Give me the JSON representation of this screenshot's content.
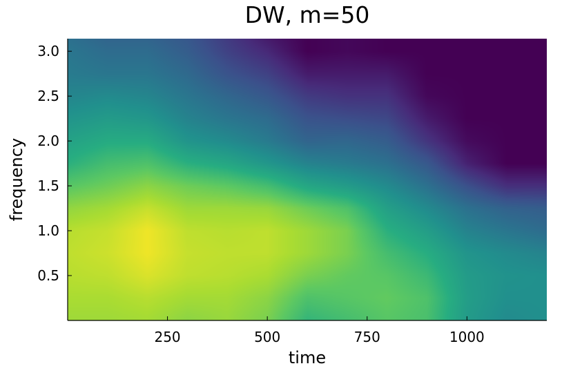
{
  "chart_data": {
    "type": "heatmap",
    "title": "DW, m=50",
    "xlabel": "time",
    "ylabel": "frequency",
    "xlim": [
      0,
      1200
    ],
    "ylim": [
      0,
      3.14
    ],
    "x_ticks": [
      250,
      500,
      750,
      1000
    ],
    "x_tick_labels": [
      "250",
      "500",
      "750",
      "1000"
    ],
    "y_ticks": [
      0.5,
      1.0,
      1.5,
      2.0,
      2.5,
      3.0
    ],
    "y_tick_labels": [
      "0.5",
      "1.0",
      "1.5",
      "2.0",
      "2.5",
      "3.0"
    ],
    "colormap": "viridis",
    "colorbar": false,
    "grid": false,
    "x": [
      0,
      100,
      200,
      300,
      400,
      500,
      600,
      700,
      800,
      900,
      1000,
      1100,
      1200
    ],
    "y": [
      0,
      0.25,
      0.5,
      0.75,
      1.0,
      1.25,
      1.5,
      1.75,
      2.0,
      2.25,
      2.5,
      2.75,
      3.0,
      3.14
    ],
    "z": [
      [
        0.86,
        0.86,
        0.87,
        0.83,
        0.85,
        0.8,
        0.66,
        0.7,
        0.74,
        0.71,
        0.55,
        0.48,
        0.5
      ],
      [
        0.88,
        0.88,
        0.9,
        0.87,
        0.87,
        0.83,
        0.72,
        0.74,
        0.76,
        0.72,
        0.56,
        0.5,
        0.5
      ],
      [
        0.9,
        0.91,
        0.95,
        0.91,
        0.9,
        0.88,
        0.8,
        0.76,
        0.74,
        0.68,
        0.55,
        0.51,
        0.5
      ],
      [
        0.91,
        0.93,
        0.98,
        0.92,
        0.91,
        0.91,
        0.86,
        0.8,
        0.7,
        0.63,
        0.52,
        0.48,
        0.45
      ],
      [
        0.9,
        0.92,
        0.98,
        0.91,
        0.9,
        0.91,
        0.86,
        0.8,
        0.64,
        0.56,
        0.45,
        0.4,
        0.36
      ],
      [
        0.84,
        0.87,
        0.92,
        0.86,
        0.86,
        0.85,
        0.78,
        0.72,
        0.57,
        0.48,
        0.38,
        0.32,
        0.3
      ],
      [
        0.74,
        0.78,
        0.83,
        0.78,
        0.75,
        0.7,
        0.6,
        0.55,
        0.48,
        0.38,
        0.25,
        0.14,
        0.14
      ],
      [
        0.64,
        0.7,
        0.72,
        0.64,
        0.6,
        0.53,
        0.45,
        0.42,
        0.38,
        0.28,
        0.1,
        0.0,
        0.0
      ],
      [
        0.58,
        0.62,
        0.62,
        0.52,
        0.48,
        0.42,
        0.33,
        0.34,
        0.3,
        0.16,
        0.03,
        0.0,
        0.0
      ],
      [
        0.52,
        0.55,
        0.53,
        0.45,
        0.4,
        0.36,
        0.26,
        0.24,
        0.22,
        0.08,
        0.0,
        0.0,
        0.0
      ],
      [
        0.46,
        0.48,
        0.46,
        0.4,
        0.34,
        0.28,
        0.18,
        0.15,
        0.15,
        0.02,
        0.0,
        0.0,
        0.0
      ],
      [
        0.42,
        0.4,
        0.4,
        0.35,
        0.26,
        0.2,
        0.08,
        0.08,
        0.08,
        0.0,
        0.0,
        0.0,
        0.0
      ],
      [
        0.4,
        0.36,
        0.36,
        0.3,
        0.2,
        0.12,
        0.0,
        0.02,
        0.0,
        0.0,
        0.0,
        0.0,
        0.0
      ],
      [
        0.38,
        0.33,
        0.33,
        0.28,
        0.18,
        0.08,
        0.0,
        0.02,
        0.0,
        0.0,
        0.0,
        0.0,
        0.0
      ]
    ]
  }
}
